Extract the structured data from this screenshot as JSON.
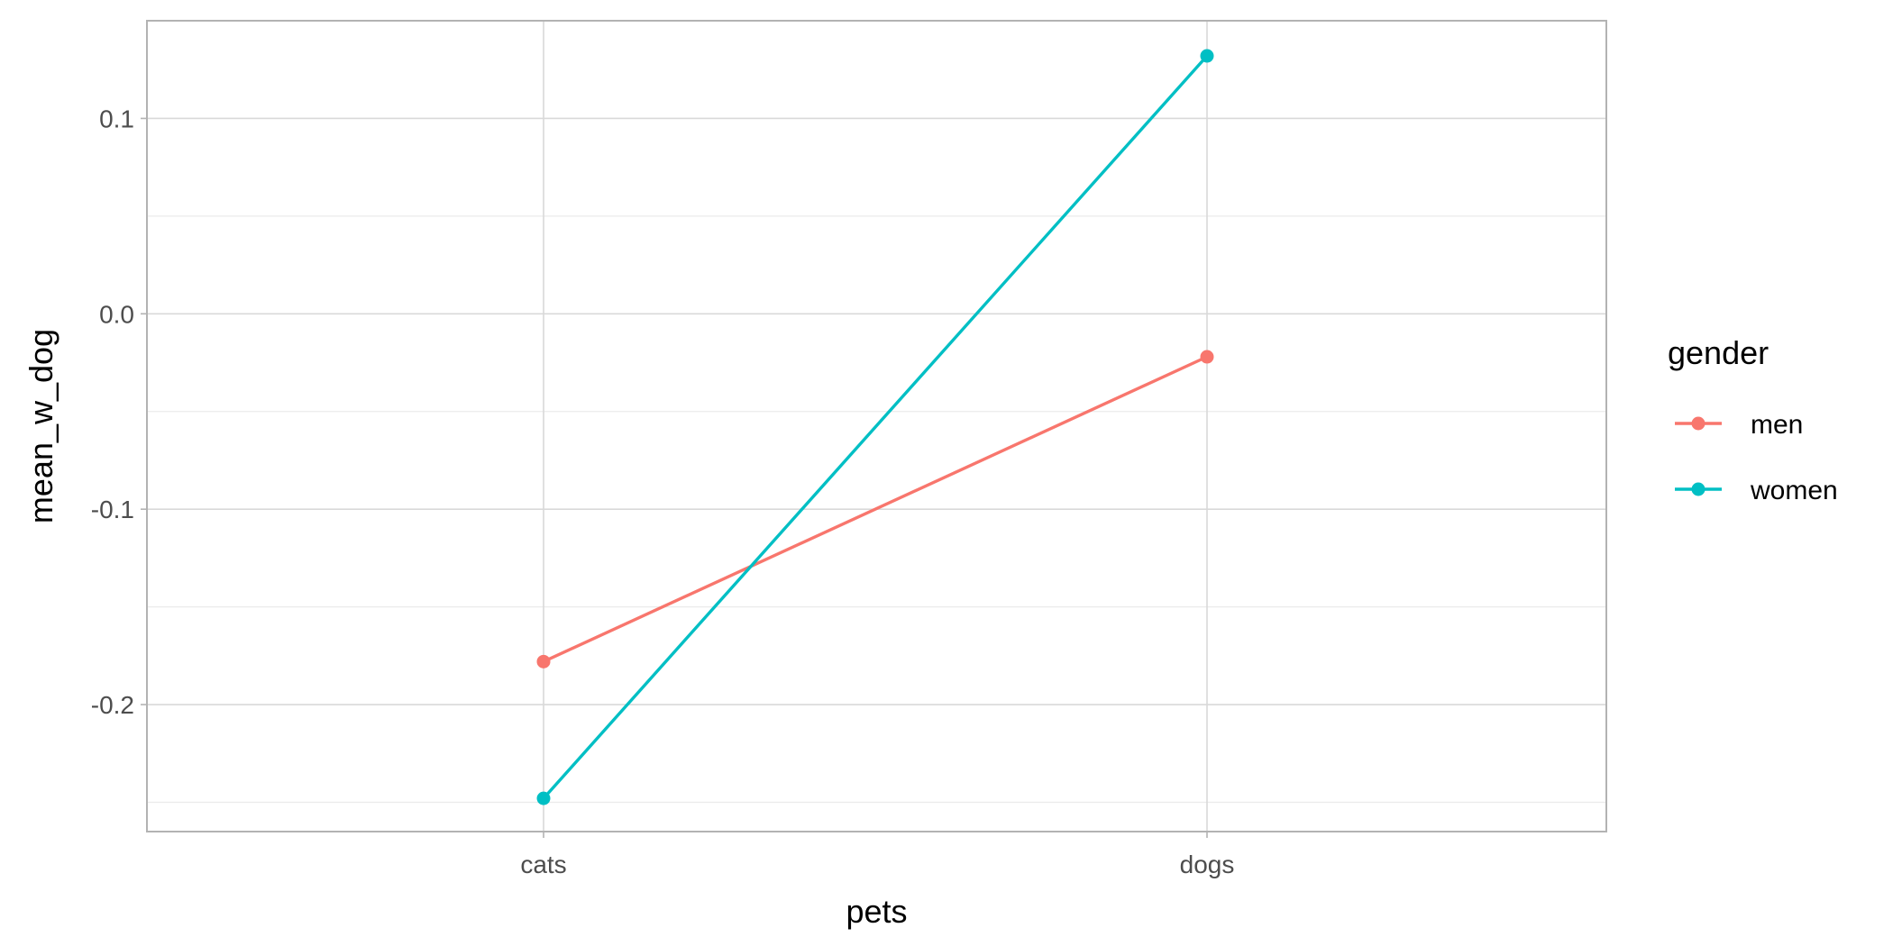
{
  "chart_data": {
    "type": "line",
    "xlabel": "pets",
    "ylabel": "mean_w_dog",
    "categories": [
      "cats",
      "dogs"
    ],
    "ylim": [
      -0.265,
      0.15
    ],
    "y_ticks": [
      0.1,
      0.0,
      -0.1,
      -0.2
    ],
    "y_tick_labels": [
      "0.1",
      "0.0",
      "-0.1",
      "-0.2"
    ],
    "grid": true,
    "legend": {
      "title": "gender",
      "placement": "right"
    },
    "series": [
      {
        "name": "men",
        "color": "#F8766D",
        "values": [
          -0.178,
          -0.022
        ]
      },
      {
        "name": "women",
        "color": "#00BFC4",
        "values": [
          -0.248,
          0.132
        ]
      }
    ]
  }
}
